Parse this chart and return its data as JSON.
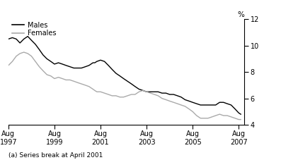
{
  "title": "",
  "ylabel_right": "%",
  "footnote": "(a) Series break at April 2001",
  "legend_entries": [
    "Males",
    "Females"
  ],
  "line_colors": [
    "#000000",
    "#aaaaaa"
  ],
  "x_tick_labels": [
    [
      "Aug",
      "1997"
    ],
    [
      "Aug",
      "1999"
    ],
    [
      "Aug",
      "2001"
    ],
    [
      "Aug",
      "2003"
    ],
    [
      "Aug",
      "2005"
    ],
    [
      "Aug",
      "2007"
    ]
  ],
  "x_tick_positions": [
    1997.58,
    1999.58,
    2001.58,
    2003.58,
    2005.58,
    2007.58
  ],
  "ylim": [
    4,
    12
  ],
  "yticks": [
    4,
    6,
    8,
    10,
    12
  ],
  "xlim": [
    1997.58,
    2007.83
  ],
  "males_x": [
    1997.58,
    1997.75,
    1997.92,
    1998.08,
    1998.25,
    1998.42,
    1998.58,
    1998.75,
    1998.92,
    1999.08,
    1999.25,
    1999.42,
    1999.58,
    1999.75,
    1999.92,
    2000.08,
    2000.25,
    2000.42,
    2000.58,
    2000.75,
    2000.92,
    2001.08,
    2001.25,
    2001.33,
    2001.42,
    2001.58,
    2001.75,
    2001.92,
    2002.08,
    2002.25,
    2002.42,
    2002.58,
    2002.75,
    2002.92,
    2003.08,
    2003.25,
    2003.42,
    2003.58,
    2003.75,
    2003.92,
    2004.08,
    2004.25,
    2004.42,
    2004.58,
    2004.75,
    2004.92,
    2005.08,
    2005.25,
    2005.42,
    2005.58,
    2005.75,
    2005.92,
    2006.08,
    2006.25,
    2006.42,
    2006.58,
    2006.75,
    2006.92,
    2007.08,
    2007.25,
    2007.42,
    2007.58,
    2007.67
  ],
  "males_y": [
    10.5,
    10.6,
    10.5,
    10.2,
    10.5,
    10.7,
    10.4,
    10.1,
    9.7,
    9.3,
    9.0,
    8.8,
    8.6,
    8.7,
    8.6,
    8.5,
    8.4,
    8.3,
    8.3,
    8.3,
    8.4,
    8.5,
    8.7,
    8.7,
    8.8,
    8.9,
    8.8,
    8.5,
    8.2,
    7.9,
    7.7,
    7.5,
    7.3,
    7.1,
    6.9,
    6.7,
    6.6,
    6.5,
    6.5,
    6.5,
    6.5,
    6.4,
    6.4,
    6.3,
    6.3,
    6.2,
    6.1,
    5.9,
    5.8,
    5.7,
    5.6,
    5.5,
    5.5,
    5.5,
    5.5,
    5.5,
    5.7,
    5.7,
    5.6,
    5.5,
    5.2,
    4.9,
    4.8
  ],
  "females_x": [
    1997.58,
    1997.75,
    1997.92,
    1998.08,
    1998.25,
    1998.42,
    1998.58,
    1998.75,
    1998.92,
    1999.08,
    1999.25,
    1999.42,
    1999.58,
    1999.75,
    1999.92,
    2000.08,
    2000.25,
    2000.42,
    2000.58,
    2000.75,
    2000.92,
    2001.08,
    2001.25,
    2001.33,
    2001.42,
    2001.58,
    2001.75,
    2001.92,
    2002.08,
    2002.25,
    2002.42,
    2002.58,
    2002.75,
    2002.92,
    2003.08,
    2003.25,
    2003.42,
    2003.58,
    2003.75,
    2003.92,
    2004.08,
    2004.25,
    2004.42,
    2004.58,
    2004.75,
    2004.92,
    2005.08,
    2005.25,
    2005.42,
    2005.58,
    2005.75,
    2005.92,
    2006.08,
    2006.25,
    2006.42,
    2006.58,
    2006.75,
    2006.92,
    2007.08,
    2007.25,
    2007.42,
    2007.58,
    2007.67
  ],
  "females_y": [
    8.5,
    8.8,
    9.2,
    9.4,
    9.5,
    9.4,
    9.2,
    8.8,
    8.4,
    8.1,
    7.8,
    7.7,
    7.5,
    7.6,
    7.5,
    7.4,
    7.4,
    7.3,
    7.2,
    7.1,
    7.0,
    6.9,
    6.7,
    6.6,
    6.5,
    6.5,
    6.4,
    6.3,
    6.2,
    6.2,
    6.1,
    6.1,
    6.2,
    6.3,
    6.3,
    6.5,
    6.6,
    6.5,
    6.4,
    6.3,
    6.2,
    6.0,
    5.9,
    5.8,
    5.7,
    5.6,
    5.5,
    5.4,
    5.2,
    5.0,
    4.7,
    4.5,
    4.5,
    4.5,
    4.6,
    4.7,
    4.8,
    4.7,
    4.7,
    4.6,
    4.5,
    4.4,
    4.4
  ]
}
